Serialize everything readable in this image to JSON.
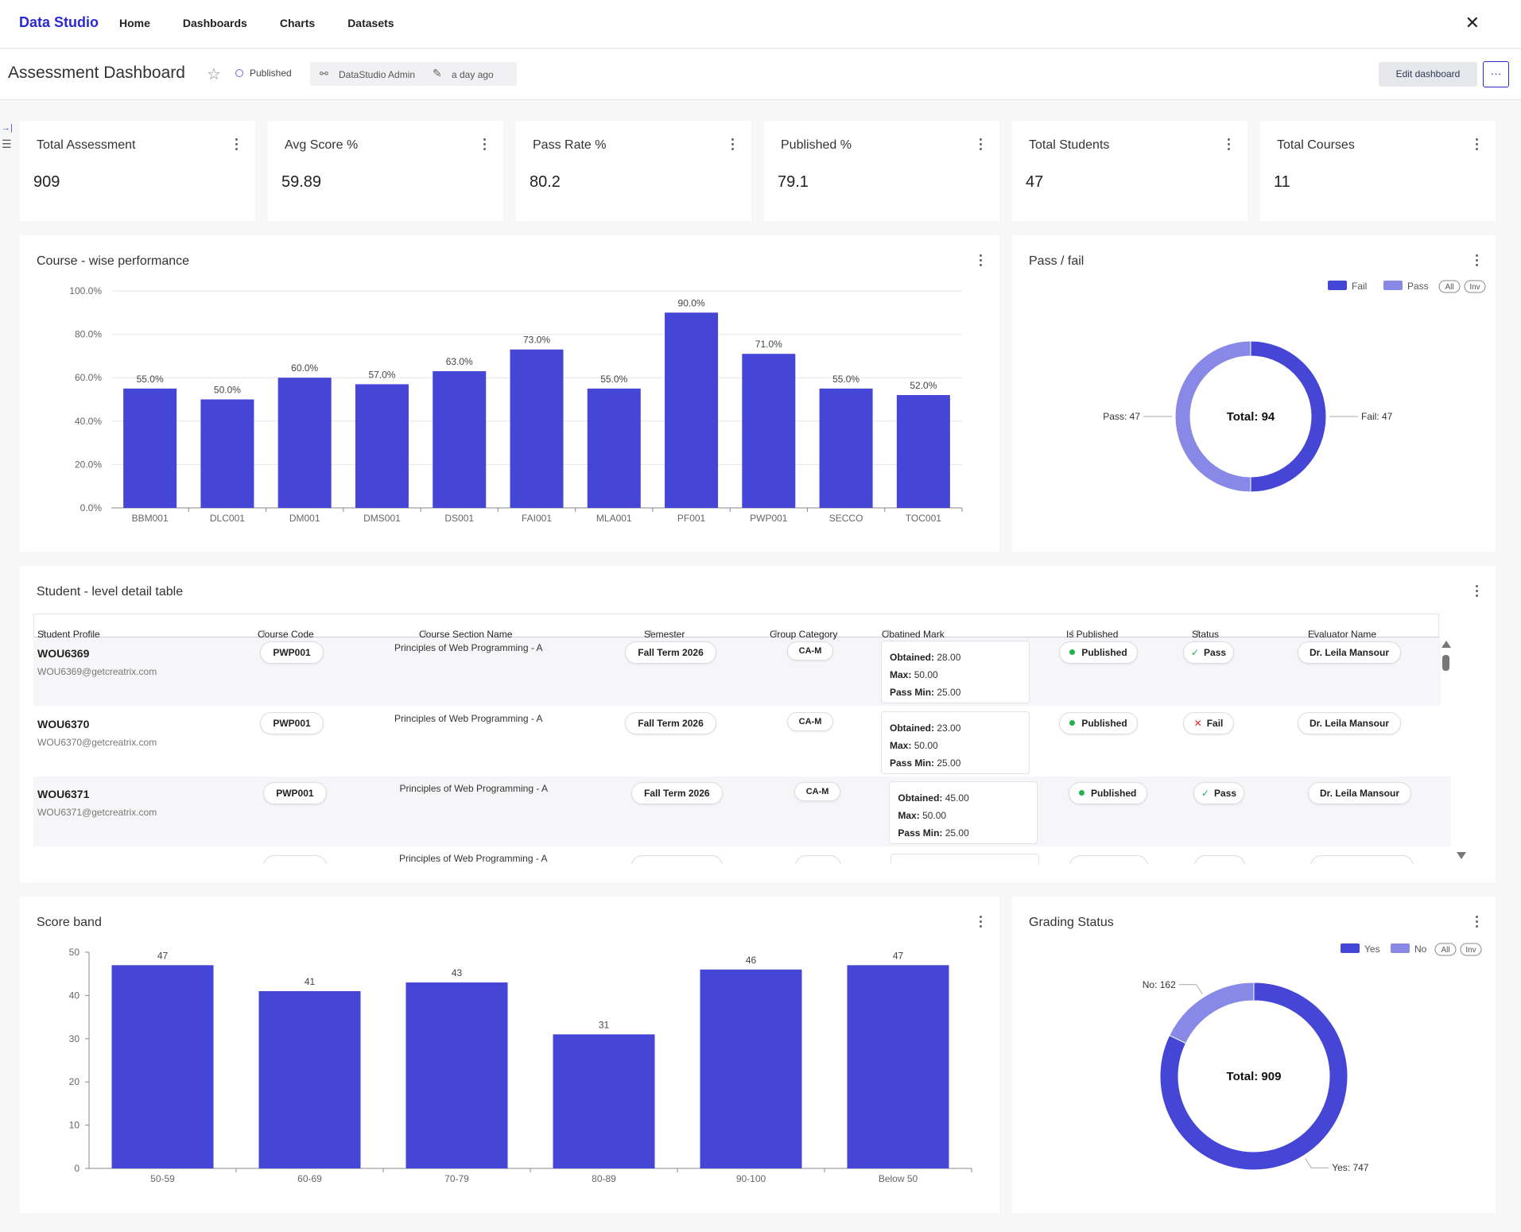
{
  "nav": {
    "brand": "Data Studio",
    "links": [
      "Home",
      "Dashboards",
      "Charts",
      "Datasets"
    ]
  },
  "header": {
    "title": "Assessment Dashboard",
    "status": "Published",
    "owner": "DataStudio Admin",
    "modified": "a day ago",
    "edit_label": "Edit dashboard",
    "more_label": "···"
  },
  "kpis": [
    {
      "title": "Total Assessment",
      "value": "909"
    },
    {
      "title": "Avg Score %",
      "value": "59.89"
    },
    {
      "title": "Pass Rate %",
      "value": "80.2"
    },
    {
      "title": "Published %",
      "value": "79.1"
    },
    {
      "title": "Total Students",
      "value": "47"
    },
    {
      "title": "Total Courses",
      "value": "11"
    }
  ],
  "charts": {
    "course_title": "Course - wise performance",
    "passfail_title": "Pass / fail",
    "table_title": "Student - level detail table",
    "scoreband_title": "Score band",
    "grading_title": "Grading Status"
  },
  "chart_data": [
    {
      "type": "bar",
      "title": "Course - wise performance",
      "categories": [
        "BBM001",
        "DLC001",
        "DM001",
        "DMS001",
        "DS001",
        "FAI001",
        "MLA001",
        "PF001",
        "PWP001",
        "SECCO",
        "TOC001"
      ],
      "values": [
        55.0,
        50.0,
        60.0,
        57.0,
        63.0,
        73.0,
        55.0,
        90.0,
        71.0,
        55.0,
        52.0
      ],
      "value_labels": [
        "55.0%",
        "50.0%",
        "60.0%",
        "57.0%",
        "63.0%",
        "73.0%",
        "55.0%",
        "90.0%",
        "71.0%",
        "55.0%",
        "52.0%"
      ],
      "yticks": [
        "0.0%",
        "20.0%",
        "40.0%",
        "60.0%",
        "80.0%",
        "100.0%"
      ],
      "ylim": [
        0,
        100
      ],
      "color": "#4545d6",
      "grid": true
    },
    {
      "type": "pie",
      "title": "Pass / fail",
      "slices": [
        {
          "name": "Fail",
          "value": 47,
          "label": "Fail: 47",
          "color": "#4545d6"
        },
        {
          "name": "Pass",
          "value": 47,
          "label": "Pass: 47",
          "color": "#8888e6"
        }
      ],
      "center_label": "Total: 94",
      "legend": [
        "Fail",
        "Pass",
        "All",
        "Inv"
      ],
      "legend_position": "top-right"
    },
    {
      "type": "bar",
      "title": "Score band",
      "categories": [
        "50-59",
        "60-69",
        "70-79",
        "80-89",
        "90-100",
        "Below 50"
      ],
      "values": [
        47,
        41,
        43,
        31,
        46,
        47
      ],
      "value_labels": [
        "47",
        "41",
        "43",
        "31",
        "46",
        "47"
      ],
      "yticks": [
        "0",
        "10",
        "20",
        "30",
        "40",
        "50"
      ],
      "ylim": [
        0,
        50
      ],
      "color": "#4545d6",
      "grid": false
    },
    {
      "type": "pie",
      "title": "Grading Status",
      "slices": [
        {
          "name": "Yes",
          "value": 747,
          "label": "Yes: 747",
          "color": "#4545d6"
        },
        {
          "name": "No",
          "value": 162,
          "label": "No: 162",
          "color": "#8888e6"
        }
      ],
      "center_label": "Total: 909",
      "legend": [
        "Yes",
        "No",
        "All",
        "Inv"
      ],
      "legend_position": "top-right"
    }
  ],
  "table": {
    "columns": [
      "Student Profile",
      "Course Code",
      "Course Section Name",
      "Semester",
      "Group Category",
      "Obatined Mark",
      "Is Published",
      "Status",
      "Evaluator Name"
    ],
    "mark_labels": {
      "obtained": "Obtained:",
      "max": "Max:",
      "pass_min": "Pass Min:"
    },
    "rows": [
      {
        "id": "WOU6369",
        "email": "WOU6369@getcreatrix.com",
        "course": "PWP001",
        "section": "Principles of Web Programming - A",
        "semester": "Fall Term 2026",
        "group": "CA-M",
        "obtained": "28.00",
        "max": "50.00",
        "pass_min": "25.00",
        "published": "Published",
        "status": "Pass",
        "evaluator": "Dr. Leila Mansour"
      },
      {
        "id": "WOU6370",
        "email": "WOU6370@getcreatrix.com",
        "course": "PWP001",
        "section": "Principles of Web Programming - A",
        "semester": "Fall Term 2026",
        "group": "CA-M",
        "obtained": "23.00",
        "max": "50.00",
        "pass_min": "25.00",
        "published": "Published",
        "status": "Fail",
        "evaluator": "Dr. Leila Mansour"
      },
      {
        "id": "WOU6371",
        "email": "WOU6371@getcreatrix.com",
        "course": "PWP001",
        "section": "Principles of Web Programming - A",
        "semester": "Fall Term 2026",
        "group": "CA-M",
        "obtained": "45.00",
        "max": "50.00",
        "pass_min": "25.00",
        "published": "Published",
        "status": "Pass",
        "evaluator": "Dr. Leila Mansour"
      }
    ],
    "partial_row_section": "Principles of Web Programming - A"
  }
}
